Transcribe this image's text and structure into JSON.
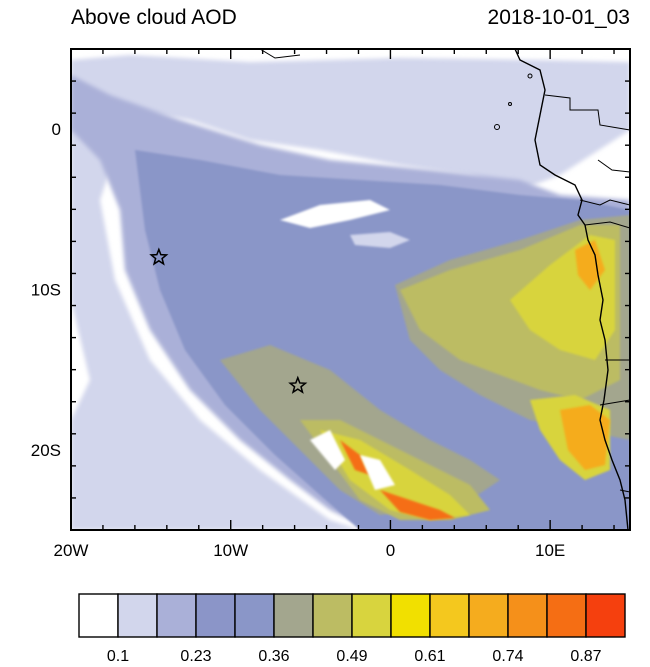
{
  "header": {
    "title": "Above cloud AOD",
    "timestamp": "2018-10-01_03"
  },
  "map": {
    "variable": "Above cloud AOD",
    "lon_range": [
      -20,
      15
    ],
    "lat_range": [
      -25,
      5
    ],
    "x_ticks": [
      {
        "value": -20,
        "label": "20W"
      },
      {
        "value": -10,
        "label": "10W"
      },
      {
        "value": 0,
        "label": "0"
      },
      {
        "value": 10,
        "label": "10E"
      }
    ],
    "y_ticks": [
      {
        "value": 0,
        "label": "0"
      },
      {
        "value": -10,
        "label": "10S"
      },
      {
        "value": -20,
        "label": "20S"
      }
    ],
    "markers": [
      {
        "name": "star-marker-west",
        "lon": -14.5,
        "lat": -8
      },
      {
        "name": "star-marker-south",
        "lon": -5.8,
        "lat": -16
      }
    ]
  },
  "colorbar": {
    "colors": [
      "#ffffff",
      "#d2d6ec",
      "#aab0d8",
      "#8b95c8",
      "#8a96c8",
      "#a3a68e",
      "#bcbc63",
      "#d8d43e",
      "#f1e000",
      "#f4c81e",
      "#f5ac1e",
      "#f5901a",
      "#f56e14",
      "#f5400e"
    ],
    "labels": [
      "0.1",
      "0.23",
      "0.36",
      "0.49",
      "0.61",
      "0.74",
      "0.87"
    ]
  }
}
